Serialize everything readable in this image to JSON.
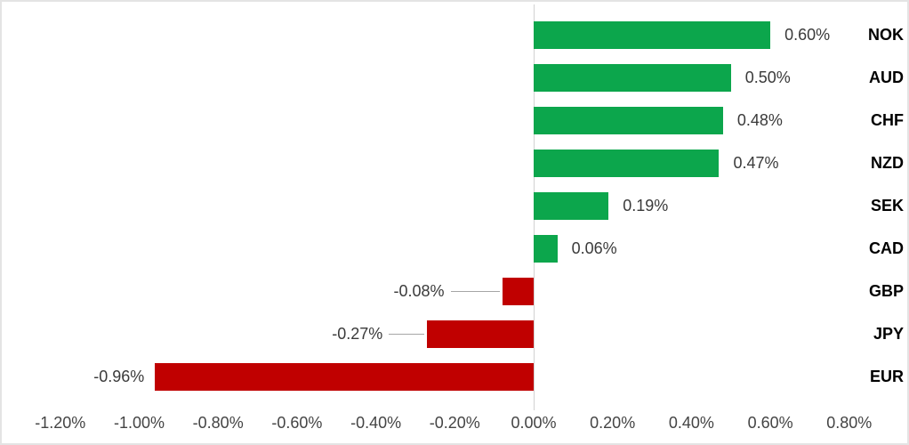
{
  "chart_data": {
    "type": "bar",
    "orientation": "horizontal",
    "title": "",
    "xlabel": "",
    "ylabel": "",
    "grid": "off",
    "legend": "none",
    "categories": [
      "NOK",
      "AUD",
      "CHF",
      "NZD",
      "SEK",
      "CAD",
      "GBP",
      "JPY",
      "EUR"
    ],
    "values": [
      0.6,
      0.5,
      0.48,
      0.47,
      0.19,
      0.06,
      -0.08,
      -0.27,
      -0.96
    ],
    "value_labels": [
      "0.60%",
      "0.50%",
      "0.48%",
      "0.47%",
      "0.19%",
      "0.06%",
      "-0.08%",
      "-0.27%",
      "-0.96%"
    ],
    "labels_with_leader_lines": [
      "GBP",
      "JPY"
    ],
    "x_axis": {
      "range": [
        -1.34,
        0.95
      ],
      "ticks": [
        {
          "label": "-1.20%",
          "value": -1.2
        },
        {
          "label": "-1.00%",
          "value": -1.0
        },
        {
          "label": "-0.80%",
          "value": -0.8
        },
        {
          "label": "-0.60%",
          "value": -0.6
        },
        {
          "label": "-0.40%",
          "value": -0.4
        },
        {
          "label": "-0.20%",
          "value": -0.2
        },
        {
          "label": "0.00%",
          "value": 0.0
        },
        {
          "label": "0.20%",
          "value": 0.2
        },
        {
          "label": "0.40%",
          "value": 0.4
        },
        {
          "label": "0.60%",
          "value": 0.6
        },
        {
          "label": "0.80%",
          "value": 0.8
        }
      ]
    },
    "colors": {
      "positive_bar": "#0ca64c",
      "negative_bar": "#c00000",
      "zero_axis_line": "#d2d2d2",
      "leader_line": "#a6a6a6",
      "value_label_text": "#3a3a3a",
      "axis_label_text": "#444444",
      "category_label_text": "#000000",
      "chart_border": "#e4e4e4",
      "background": "#ffffff"
    }
  }
}
